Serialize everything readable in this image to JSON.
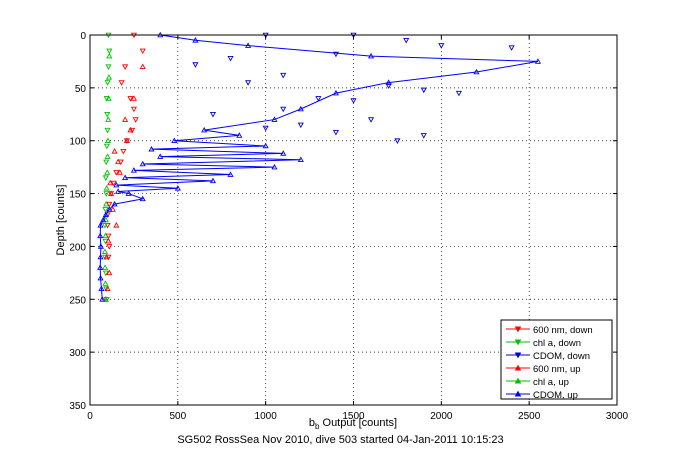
{
  "chart_data": {
    "type": "scatter",
    "title": "",
    "ylabel": "Depth [counts]",
    "xlabel_parts": [
      "b",
      "b",
      " Output [counts]"
    ],
    "caption": "SG502 RossSea Nov 2010, dive 503 started 04-Jan-2011 10:15:23",
    "xlim": [
      0,
      3000
    ],
    "ylim": [
      0,
      350
    ],
    "y_reversed": true,
    "xticks": [
      "0",
      "500",
      "1000",
      "1500",
      "2000",
      "2500",
      "3000"
    ],
    "yticks": [
      "0",
      "50",
      "100",
      "150",
      "200",
      "250",
      "300",
      "350"
    ],
    "grid": true,
    "legend_position": "bottom-right",
    "series": [
      {
        "name": "600 nm, down",
        "color": "#ff0000",
        "marker": "triangle-down",
        "line": false,
        "x": [
          250,
          300,
          200,
          180,
          230,
          250,
          260,
          240,
          210,
          190,
          175,
          150,
          135,
          120,
          110,
          100,
          100,
          105,
          110,
          105
        ],
        "y": [
          0,
          15,
          30,
          45,
          60,
          70,
          80,
          90,
          100,
          110,
          120,
          130,
          140,
          150,
          160,
          170,
          180,
          190,
          200,
          210
        ]
      },
      {
        "name": "chl a, down",
        "color": "#00c000",
        "marker": "triangle-down",
        "line": false,
        "x": [
          105,
          110,
          105,
          100,
          95,
          98,
          100,
          96,
          92,
          90,
          93,
          88,
          85,
          88,
          86,
          90,
          92,
          95
        ],
        "y": [
          0,
          15,
          30,
          45,
          60,
          75,
          90,
          105,
          120,
          135,
          150,
          165,
          180,
          195,
          210,
          225,
          240,
          250
        ]
      },
      {
        "name": "CDOM, down",
        "color": "#0000cc",
        "marker": "triangle-down",
        "line": false,
        "x": [
          1000,
          1500,
          1800,
          2000,
          2400,
          1400,
          800,
          600,
          1100,
          900,
          1700,
          1900,
          2100,
          1300,
          1500,
          1100,
          700,
          1600,
          1200,
          1000,
          1400,
          1900,
          1750
        ],
        "y": [
          0,
          0,
          5,
          10,
          12,
          18,
          22,
          28,
          38,
          45,
          48,
          52,
          55,
          60,
          62,
          70,
          75,
          80,
          85,
          88,
          92,
          95,
          100
        ]
      },
      {
        "name": "600 nm, up",
        "color": "#ff0000",
        "marker": "triangle-up",
        "line": false,
        "x": [
          90,
          100,
          110,
          95,
          105,
          150,
          130,
          120,
          115,
          170,
          160,
          140,
          210,
          230,
          200,
          250,
          300
        ],
        "y": [
          250,
          240,
          225,
          210,
          195,
          180,
          165,
          150,
          140,
          130,
          120,
          110,
          100,
          90,
          80,
          60,
          30
        ]
      },
      {
        "name": "chl a, up",
        "color": "#00c000",
        "marker": "triangle-up",
        "line": false,
        "x": [
          90,
          88,
          86,
          85,
          88,
          90,
          92,
          95,
          98,
          100,
          102,
          104,
          106,
          108,
          110
        ],
        "y": [
          250,
          235,
          220,
          205,
          190,
          175,
          160,
          145,
          130,
          115,
          100,
          80,
          60,
          40,
          20
        ]
      },
      {
        "name": "CDOM, up",
        "color": "#0000ff",
        "marker": "triangle-up",
        "line": true,
        "x": [
          70,
          65,
          60,
          58,
          60,
          62,
          58,
          60,
          75,
          90,
          110,
          140,
          300,
          220,
          160,
          500,
          150,
          700,
          200,
          800,
          250,
          1050,
          300,
          1200,
          400,
          1100,
          350,
          1000,
          480,
          850,
          650,
          1050,
          1200,
          1400,
          1700,
          2200,
          2550,
          1600,
          900,
          600,
          400
        ],
        "y": [
          250,
          240,
          230,
          220,
          210,
          200,
          190,
          180,
          175,
          170,
          165,
          160,
          155,
          150,
          148,
          145,
          142,
          138,
          135,
          132,
          128,
          125,
          122,
          118,
          115,
          112,
          108,
          105,
          100,
          95,
          90,
          80,
          70,
          55,
          45,
          35,
          25,
          20,
          10,
          5,
          0
        ]
      }
    ]
  }
}
